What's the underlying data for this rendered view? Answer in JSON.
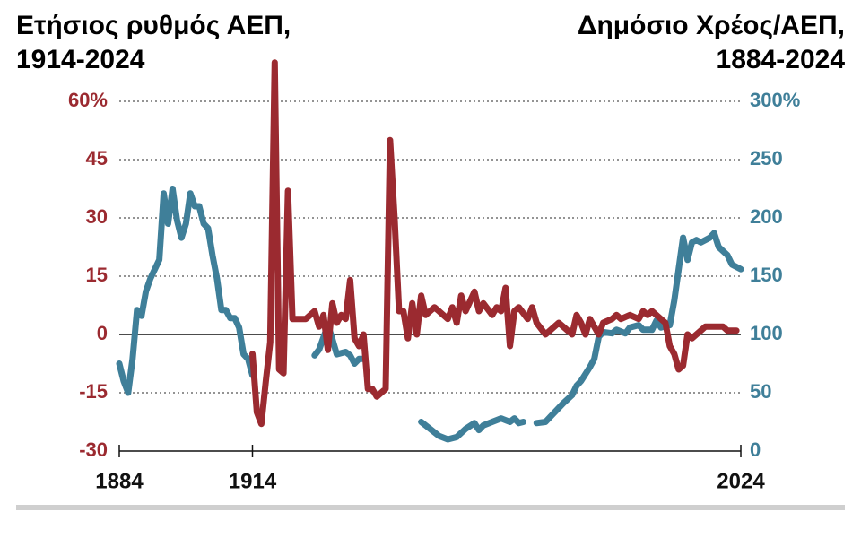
{
  "chart_data": {
    "type": "line",
    "xlim": [
      1884,
      2024
    ],
    "xticks": [
      1884,
      1914,
      2024
    ],
    "ylim": [
      -30,
      60
    ],
    "yticks": [
      -30,
      -15,
      0,
      15,
      30,
      45,
      {
        "value": 60,
        "label": "60%"
      }
    ],
    "y2lim": [
      0,
      300
    ],
    "y2ticks": [
      0,
      50,
      100,
      150,
      200,
      250,
      {
        "value": 300,
        "label": "300%"
      }
    ],
    "grid": true,
    "series": [
      {
        "name": "Ετήσιος ρυθμός ΑΕΠ, 1914-2024",
        "color": "#9b2a30",
        "axis": "y",
        "x": [
          1914,
          1915,
          1916,
          1917,
          1918,
          1919,
          1920,
          1921,
          1922,
          1923,
          1924,
          1926,
          1928,
          1929,
          1930,
          1931,
          1932,
          1933,
          1934,
          1935,
          1936,
          1937,
          1938,
          1939,
          1940,
          1941,
          1942,
          1944,
          1945,
          1946,
          1947,
          1948,
          1949,
          1950,
          1951,
          1952,
          1953,
          1955,
          1956,
          1958,
          1959,
          1960,
          1961,
          1962,
          1964,
          1965,
          1966,
          1968,
          1969,
          1970,
          1971,
          1972,
          1973,
          1974,
          1976,
          1977,
          1978,
          1980,
          1981,
          1983,
          1984,
          1986,
          1987,
          1988,
          1989,
          1990,
          1992,
          1993,
          1995,
          1996,
          1997,
          1999,
          2001,
          2002,
          2003,
          2004,
          2006,
          2007,
          2008,
          2009,
          2010,
          2011,
          2012,
          2013,
          2015,
          2016,
          2018,
          2020,
          2021,
          2023
        ],
        "values": [
          -5,
          -20,
          -23,
          -12,
          -2,
          70,
          -9,
          -10,
          37,
          4,
          4,
          4,
          6,
          2,
          5,
          -4,
          8,
          3,
          5,
          4,
          14,
          -1,
          -3,
          0,
          -14,
          -14,
          -16,
          -14,
          50,
          30,
          6,
          6,
          -1,
          8,
          0,
          10,
          5,
          7,
          6,
          4,
          7,
          3,
          10,
          6,
          11,
          6,
          8,
          5,
          7,
          6,
          12,
          -3,
          6,
          7,
          4,
          7,
          3,
          0,
          1,
          3,
          2,
          0,
          5,
          3,
          0,
          4,
          0,
          3,
          4,
          5,
          4,
          5,
          4,
          6,
          5,
          6,
          4,
          3,
          -3,
          -5,
          -9,
          -8,
          0,
          -1,
          1,
          2,
          2,
          2,
          1,
          1
        ]
      },
      {
        "name": "Δημόσιο Χρέος/ΑΕΠ, 1884-2024",
        "color": "#3f7f99",
        "axis": "y2",
        "x": [
          1884,
          1885,
          1886,
          1887,
          1888,
          1889,
          1890,
          1891,
          1893,
          1894,
          1895,
          1896,
          1897,
          1898,
          1899,
          1900,
          1901,
          1902,
          1903,
          1904,
          1905,
          1906,
          1907,
          1908,
          1909,
          1910,
          1911,
          1912,
          1913,
          1914,
          1920,
          1928,
          1929,
          1931,
          1932,
          1933,
          1935,
          1936,
          1937,
          1938,
          1939,
          1945,
          1952,
          1954,
          1956,
          1958,
          1960,
          1962,
          1964,
          1965,
          1966,
          1968,
          1970,
          1972,
          1973,
          1974,
          1975,
          1976,
          1978,
          1980,
          1982,
          1984,
          1986,
          1987,
          1988,
          1990,
          1991,
          1992,
          1993,
          1995,
          1996,
          1998,
          1999,
          2001,
          2002,
          2004,
          2005,
          2006,
          2008,
          2009,
          2010,
          2011,
          2012,
          2013,
          2014,
          2015,
          2017,
          2018,
          2019,
          2021,
          2022,
          2024
        ],
        "values": [
          75,
          60,
          50,
          79,
          121,
          116,
          137,
          148,
          164,
          221,
          195,
          225,
          198,
          183,
          195,
          221,
          210,
          210,
          195,
          191,
          168,
          148,
          121,
          121,
          114,
          114,
          106,
          83,
          79,
          65,
          null,
          82,
          87,
          108,
          96,
          83,
          85,
          82,
          75,
          79,
          79,
          null,
          25,
          19,
          13,
          10,
          12,
          19,
          24,
          18,
          22,
          25,
          28,
          25,
          28,
          24,
          25,
          null,
          24,
          25,
          33,
          41,
          48,
          56,
          60,
          72,
          79,
          98,
          102,
          101,
          104,
          101,
          106,
          108,
          104,
          104,
          112,
          106,
          108,
          129,
          156,
          183,
          164,
          179,
          181,
          179,
          183,
          187,
          175,
          168,
          160,
          156
        ]
      }
    ]
  }
}
